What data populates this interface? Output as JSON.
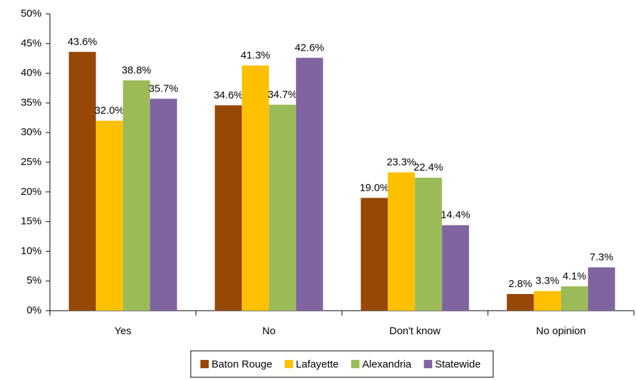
{
  "chart_data": {
    "type": "bar",
    "categories": [
      "Yes",
      "No",
      "Don't know",
      "No opinion"
    ],
    "series": [
      {
        "name": "Baton Rouge",
        "color": "#974706",
        "values": [
          43.6,
          34.6,
          19.0,
          2.8
        ],
        "value_labels": [
          "43.6%",
          "34.6%",
          "19.0%",
          "2.8%"
        ]
      },
      {
        "name": "Lafayette",
        "color": "#ffc000",
        "values": [
          32.0,
          41.3,
          23.3,
          3.3
        ],
        "value_labels": [
          "32.0%",
          "41.3%",
          "23.3%",
          "3.3%"
        ]
      },
      {
        "name": "Alexandria",
        "color": "#9bbb59",
        "values": [
          38.8,
          34.7,
          22.4,
          4.1
        ],
        "value_labels": [
          "38.8%",
          "34.7%",
          "22.4%",
          "4.1%"
        ]
      },
      {
        "name": "Statewide",
        "color": "#8064a2",
        "values": [
          35.7,
          42.6,
          14.4,
          7.3
        ],
        "value_labels": [
          "35.7%",
          "42.6%",
          "14.4%",
          "7.3%"
        ]
      }
    ],
    "ylim": [
      0,
      50
    ],
    "yticks": [
      {
        "value": 0,
        "label": "0%"
      },
      {
        "value": 5,
        "label": "5%"
      },
      {
        "value": 10,
        "label": "10%"
      },
      {
        "value": 15,
        "label": "15%"
      },
      {
        "value": 20,
        "label": "20%"
      },
      {
        "value": 25,
        "label": "25%"
      },
      {
        "value": 30,
        "label": "30%"
      },
      {
        "value": 35,
        "label": "35%"
      },
      {
        "value": 40,
        "label": "40%"
      },
      {
        "value": 45,
        "label": "45%"
      },
      {
        "value": 50,
        "label": "50%"
      }
    ],
    "grid": false,
    "legend": "bottom"
  }
}
